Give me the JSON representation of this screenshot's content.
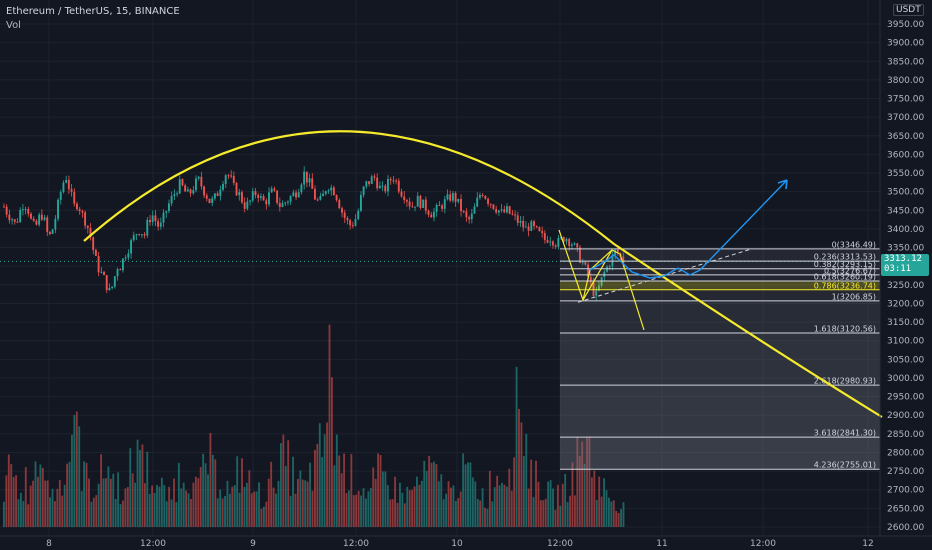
{
  "header": {
    "symbol": "Ethereum / TetherUS, 15, BINANCE",
    "indicator": "Vol"
  },
  "currency": "USDT",
  "last_price": {
    "value": "3313.12",
    "countdown": "03:11"
  },
  "colors": {
    "bg": "#131722",
    "up": "#26a69a",
    "down": "#ef5350",
    "curve": "#f5eb2c",
    "projection": "#2196f3",
    "fib": "#d1d4dc",
    "fib_highlight": "#f5eb2c",
    "axis_text": "#b2b5be"
  },
  "chart_data": {
    "type": "candlestick",
    "y_axis": {
      "min": 2600,
      "max": 3950,
      "ticks": [
        "2600.00",
        "2650.00",
        "2700.00",
        "2750.00",
        "2800.00",
        "2850.00",
        "2900.00",
        "2950.00",
        "3000.00",
        "3050.00",
        "3100.00",
        "3150.00",
        "3200.00",
        "3250.00",
        "3300.00",
        "3350.00",
        "3400.00",
        "3450.00",
        "3500.00",
        "3550.00",
        "3600.00",
        "3650.00",
        "3700.00",
        "3750.00",
        "3800.00",
        "3850.00",
        "3900.00",
        "3950.00"
      ]
    },
    "x_axis": {
      "labels": [
        "8",
        "12:00",
        "9",
        "12:00",
        "10",
        "12:00",
        "11",
        "12:00",
        "12"
      ]
    },
    "price_path": [
      [
        3460,
        3440,
        3430,
        3410,
        3445,
        3470,
        3460,
        3420,
        3400,
        3430,
        3440,
        3390,
        3380,
        3420,
        3470,
        3520,
        3540,
        3500,
        3460,
        3470,
        3440,
        3420,
        3390,
        3340,
        3300,
        3280,
        3260,
        3230,
        3250,
        3300
      ],
      [
        3300,
        3330,
        3350,
        3370,
        3390,
        3400,
        3380,
        3420,
        3440,
        3420,
        3400,
        3430,
        3460,
        3480,
        3500,
        3520,
        3510,
        3490,
        3500,
        3520,
        3530,
        3510,
        3490,
        3470,
        3480,
        3500,
        3530,
        3550,
        3540,
        3510
      ],
      [
        3500,
        3480,
        3460,
        3470,
        3490,
        3500,
        3480,
        3470,
        3490,
        3500,
        3480,
        3460,
        3470,
        3480,
        3490,
        3500,
        3520,
        3550,
        3530,
        3510,
        3480,
        3470,
        3490,
        3520,
        3510,
        3500,
        3470,
        3440,
        3420,
        3410
      ],
      [
        3420,
        3450,
        3500,
        3520,
        3530,
        3540,
        3520,
        3500,
        3510,
        3530,
        3540,
        3520,
        3500,
        3490,
        3470,
        3460,
        3480,
        3470,
        3460,
        3450,
        3440,
        3450,
        3460,
        3470,
        3480,
        3490,
        3480,
        3460,
        3440,
        3420
      ],
      [
        3430,
        3460,
        3490,
        3500,
        3480,
        3470,
        3460,
        3450,
        3440,
        3450,
        3440,
        3430,
        3420,
        3410,
        3400,
        3410,
        3400,
        3390,
        3380,
        3370,
        3380,
        3370,
        3360,
        3370,
        3380,
        3370,
        3360,
        3340,
        3320,
        3300
      ],
      [
        3270,
        3240,
        3220,
        3250,
        3280,
        3300,
        3320,
        3340,
        3330,
        3310
      ]
    ],
    "volume_profile": [
      40,
      60,
      55,
      30,
      45,
      35,
      50,
      80,
      60,
      40,
      35,
      45,
      55,
      70,
      120,
      90,
      60,
      50,
      40,
      45,
      55,
      65,
      50,
      45,
      40,
      35,
      60,
      70,
      90,
      60,
      50,
      45,
      40,
      35,
      30,
      45,
      55,
      60,
      50,
      40,
      45,
      65,
      70,
      55,
      50,
      45,
      40,
      35,
      55,
      60,
      45,
      40,
      35,
      30,
      40,
      50,
      60,
      70,
      65,
      55,
      50,
      45,
      40,
      55,
      65,
      80,
      110,
      160,
      90,
      70,
      60,
      55,
      50,
      45,
      40,
      35,
      45,
      55,
      50,
      45,
      40,
      38,
      36,
      34,
      40,
      45,
      50,
      60,
      55,
      50,
      45,
      40,
      35,
      45,
      55,
      60,
      50,
      40,
      35,
      30,
      45,
      50,
      55,
      60,
      65,
      120,
      140,
      90,
      60,
      50,
      45,
      40,
      35,
      30,
      35,
      40,
      45,
      55,
      70,
      90,
      80,
      60,
      45,
      40,
      35,
      30,
      25,
      20
    ],
    "fibonacci": [
      {
        "ratio": "0",
        "price": 3346.49,
        "label": "0(3346.49)"
      },
      {
        "ratio": "0.236",
        "price": 3313.53,
        "label": "0.236(3313.53)"
      },
      {
        "ratio": "0.382",
        "price": 3293.15,
        "label": "0.382(3293.15)"
      },
      {
        "ratio": "0.5",
        "price": 3276.67,
        "label": "0.5(3276.67)"
      },
      {
        "ratio": "0.618",
        "price": 3260.19,
        "label": "0.618(3260.19)"
      },
      {
        "ratio": "0.786",
        "price": 3236.74,
        "label": "0.786(3236.74)"
      },
      {
        "ratio": "1",
        "price": 3206.85,
        "label": "1(3206.85)"
      },
      {
        "ratio": "1.618",
        "price": 3120.56,
        "label": "1.618(3120.56)"
      },
      {
        "ratio": "2.618",
        "price": 2980.93,
        "label": "2.618(2980.93)"
      },
      {
        "ratio": "3.618",
        "price": 2841.3,
        "label": "3.618(2841.30)"
      },
      {
        "ratio": "4.236",
        "price": 2755.01,
        "label": "4.236(2755.01)"
      }
    ],
    "annotations": [
      "rounded top curve (yellow)",
      "bear flag (yellow)",
      "bullish projection (blue arrow)"
    ]
  }
}
